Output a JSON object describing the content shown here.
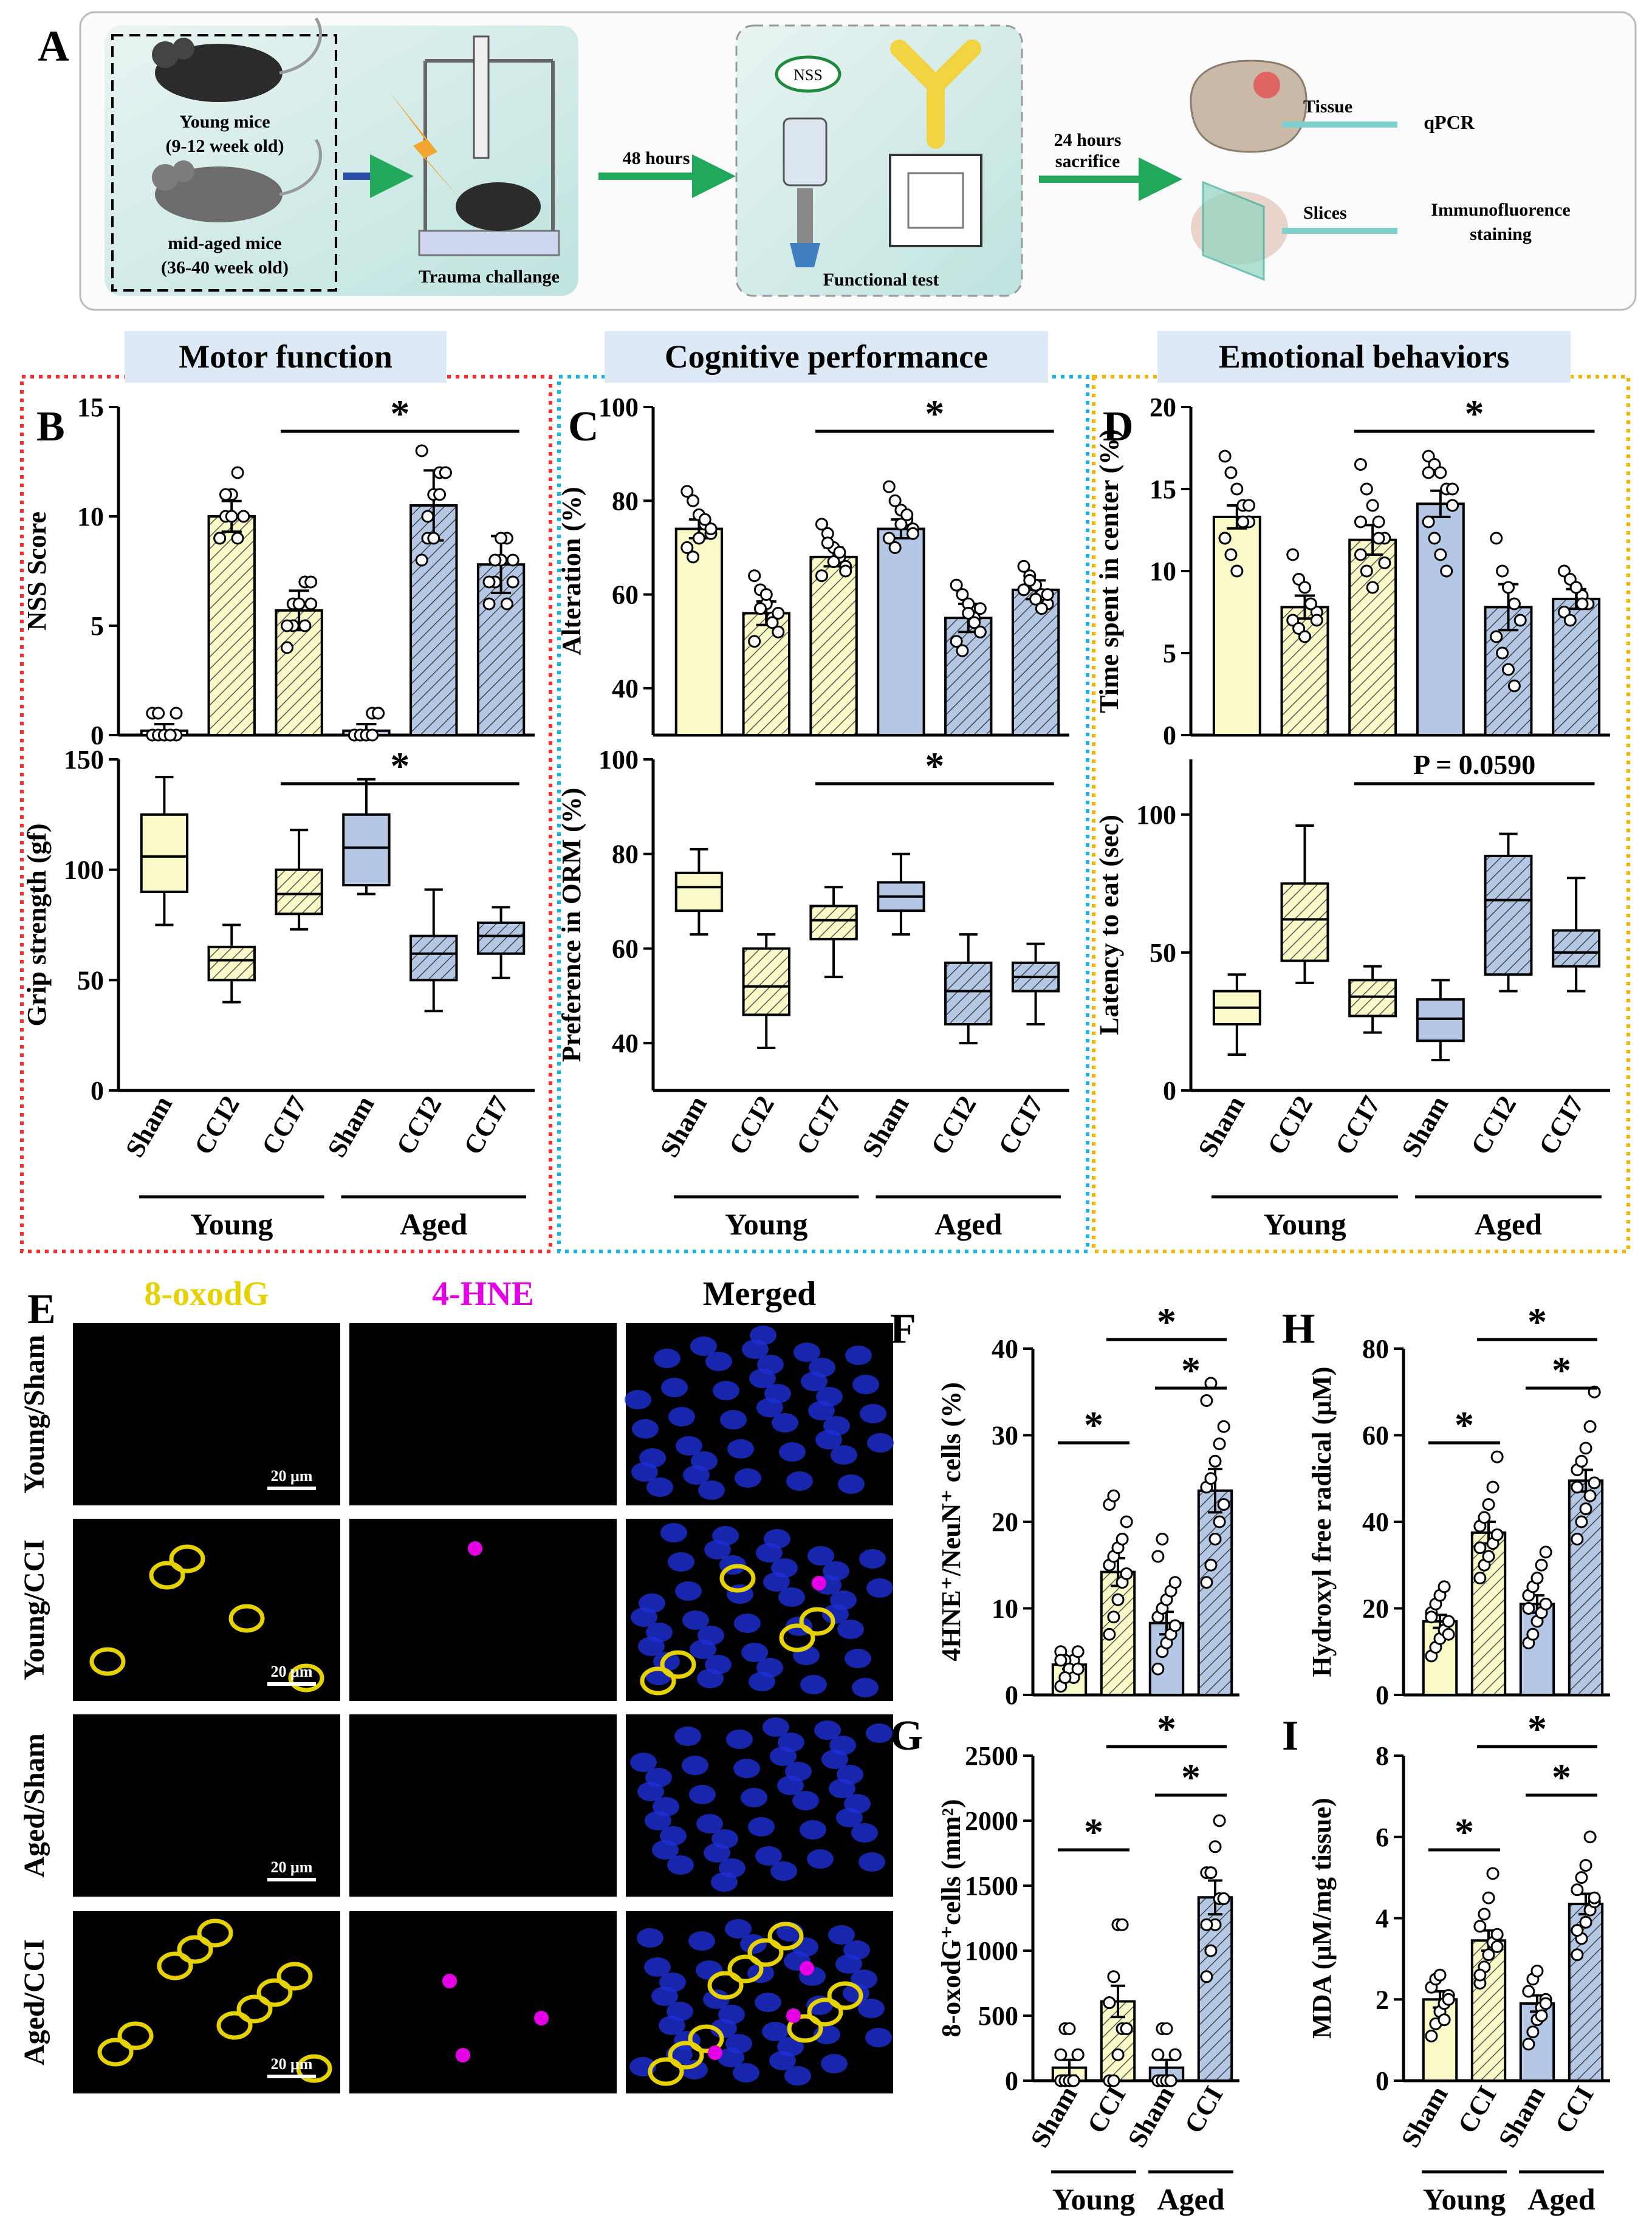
{
  "panel_labels": {
    "A": "A",
    "B": "B",
    "C": "C",
    "D": "D",
    "E": "E",
    "F": "F",
    "G": "G",
    "H": "H",
    "I": "I"
  },
  "schematic": {
    "young_mice": "Young mice",
    "young_age": "(9-12 week old)",
    "aged_mice": "mid-aged mice",
    "aged_age": "(36-40 week old)",
    "trauma": "Trauma challange",
    "step1": "48 hours",
    "nss_badge": "NSS",
    "functional_test": "Functional test",
    "step2_line1": "24 hours",
    "step2_line2": "sacrifice",
    "tissue": "Tissue",
    "qpcr": "qPCR",
    "slices": "Slices",
    "immuno_line1": "Immunofluorence",
    "immuno_line2": "staining"
  },
  "sections": {
    "motor": "Motor function",
    "cognitive": "Cognitive performance",
    "emotional": "Emotional behaviors"
  },
  "groups6": [
    "Sham",
    "CCI2",
    "CCI7",
    "Sham",
    "CCI2",
    "CCI7"
  ],
  "groups4": [
    "Sham",
    "CCI",
    "Sham",
    "CCI"
  ],
  "cohorts": {
    "young": "Young",
    "aged": "Aged"
  },
  "sig": {
    "star": "*",
    "pval": "P = 0.0590"
  },
  "colors": {
    "young": "#fafac8",
    "aged": "#b4c8e6",
    "stroke": "#000000",
    "dot": "#ffffff"
  },
  "microscopy": {
    "col_headers": [
      "8-oxodG",
      "4-HNE",
      "Merged"
    ],
    "col_colors": [
      "#e6d200",
      "#e600e6",
      "#000000"
    ],
    "row_labels": [
      "Young/Sham",
      "Young/CCI",
      "Aged/Sham",
      "Aged/CCI"
    ],
    "scale_bar": "20 μm"
  },
  "chart_data": [
    {
      "id": "B1",
      "type": "bar",
      "ylabel": "NSS Score",
      "ylim": [
        0,
        15
      ],
      "ticks": [
        0,
        5,
        10,
        15
      ],
      "categories": [
        "Sham",
        "CCI2",
        "CCI7",
        "Sham",
        "CCI2",
        "CCI7"
      ],
      "values": [
        0.2,
        10,
        5.7,
        0.2,
        10.5,
        7.8
      ],
      "errors": [
        0.3,
        0.7,
        0.9,
        0.3,
        1.6,
        1.3
      ],
      "points": [
        [
          0,
          0,
          0,
          0,
          0,
          1,
          1,
          0,
          0,
          1
        ],
        [
          9,
          10,
          11,
          12,
          10,
          9,
          11,
          10,
          9,
          10
        ],
        [
          4,
          5,
          6,
          7,
          6,
          5,
          6,
          6,
          5,
          7
        ],
        [
          0,
          0,
          0,
          1,
          1,
          0,
          0,
          0,
          0,
          1
        ],
        [
          8,
          9,
          11,
          12,
          12,
          13,
          10,
          9,
          11,
          12
        ],
        [
          6,
          7,
          8,
          9,
          8,
          7,
          8,
          9,
          6,
          7
        ]
      ],
      "sig": {
        "from": 2,
        "to": 5,
        "label": "*"
      }
    },
    {
      "id": "B2",
      "type": "box",
      "ylabel": "Grip strength (gf)",
      "ylim": [
        0,
        150
      ],
      "ticks": [
        0,
        50,
        100,
        150
      ],
      "categories": [
        "Sham",
        "CCI2",
        "CCI7",
        "Sham",
        "CCI2",
        "CCI7"
      ],
      "boxes": [
        [
          75,
          90,
          106,
          125,
          142
        ],
        [
          40,
          50,
          59,
          65,
          75
        ],
        [
          73,
          80,
          89,
          100,
          118
        ],
        [
          89,
          93,
          110,
          125,
          141
        ],
        [
          36,
          50,
          62,
          70,
          91
        ],
        [
          51,
          62,
          70,
          76,
          83
        ]
      ],
      "sig": {
        "from": 2,
        "to": 5,
        "label": "*"
      }
    },
    {
      "id": "C1",
      "type": "bar",
      "ylabel": "Alteration (%)",
      "ylim": [
        30,
        100
      ],
      "ticks": [
        40,
        60,
        80,
        100
      ],
      "categories": [
        "Sham",
        "CCI2",
        "CCI7",
        "Sham",
        "CCI2",
        "CCI7"
      ],
      "values": [
        74,
        56,
        68,
        74,
        55,
        61
      ],
      "errors": [
        2,
        2.5,
        2,
        2,
        3,
        2
      ],
      "points": [
        [
          82,
          80,
          77,
          75,
          73,
          70,
          68,
          72,
          76,
          74
        ],
        [
          64,
          61,
          58,
          55,
          52,
          50,
          57,
          60,
          54,
          56
        ],
        [
          75,
          73,
          70,
          68,
          66,
          64,
          71,
          67,
          69,
          65
        ],
        [
          83,
          80,
          78,
          76,
          74,
          72,
          70,
          75,
          77,
          73
        ],
        [
          62,
          60,
          58,
          55,
          52,
          50,
          48,
          56,
          54,
          57
        ],
        [
          66,
          64,
          62,
          60,
          58,
          61,
          63,
          59,
          57,
          60
        ]
      ],
      "sig": {
        "from": 2,
        "to": 5,
        "label": "*"
      }
    },
    {
      "id": "C2",
      "type": "box",
      "ylabel": "Preference in ORM (%)",
      "ylim": [
        30,
        100
      ],
      "ticks": [
        40,
        60,
        80,
        100
      ],
      "categories": [
        "Sham",
        "CCI2",
        "CCI7",
        "Sham",
        "CCI2",
        "CCI7"
      ],
      "boxes": [
        [
          63,
          68,
          73,
          76,
          81
        ],
        [
          39,
          46,
          52,
          60,
          63
        ],
        [
          54,
          62,
          66,
          69,
          73
        ],
        [
          63,
          68,
          71,
          74,
          80
        ],
        [
          40,
          44,
          51,
          57,
          63
        ],
        [
          44,
          51,
          54,
          57,
          61
        ]
      ],
      "sig": {
        "from": 2,
        "to": 5,
        "label": "*"
      }
    },
    {
      "id": "D1",
      "type": "bar",
      "ylabel": "Time spent in center (%)",
      "ylim": [
        0,
        20
      ],
      "ticks": [
        0,
        5,
        10,
        15,
        20
      ],
      "categories": [
        "Sham",
        "CCI2",
        "CCI7",
        "Sham",
        "CCI2",
        "CCI7"
      ],
      "values": [
        13.3,
        7.8,
        11.9,
        14.1,
        7.8,
        8.3
      ],
      "errors": [
        0.7,
        0.7,
        0.9,
        0.8,
        1.4,
        0.6
      ],
      "points": [
        [
          17,
          16,
          15,
          14,
          13,
          12,
          11,
          10,
          13,
          14,
          12
        ],
        [
          11,
          9.5,
          9,
          8,
          7.5,
          7,
          6.5,
          6,
          8,
          7
        ],
        [
          16.5,
          15,
          14,
          13,
          12,
          11,
          10,
          9,
          12,
          10.5,
          13
        ],
        [
          17,
          16.5,
          16,
          15,
          14,
          13,
          12,
          11,
          10,
          15,
          16
        ],
        [
          12,
          10,
          9,
          8,
          7,
          6,
          5,
          4,
          3
        ],
        [
          10,
          9.5,
          9,
          8.5,
          8,
          7.5,
          7,
          9,
          8
        ]
      ],
      "sig": {
        "from": 2,
        "to": 5,
        "label": "*"
      }
    },
    {
      "id": "D2",
      "type": "box",
      "ylabel": "Latency to eat (sec)",
      "ylim": [
        0,
        120
      ],
      "ticks": [
        0,
        50,
        100
      ],
      "categories": [
        "Sham",
        "CCI2",
        "CCI7",
        "Sham",
        "CCI2",
        "CCI7"
      ],
      "boxes": [
        [
          13,
          24,
          30,
          36,
          42
        ],
        [
          39,
          47,
          62,
          75,
          96
        ],
        [
          21,
          27,
          34,
          40,
          45
        ],
        [
          11,
          18,
          26,
          33,
          40
        ],
        [
          36,
          42,
          69,
          85,
          93
        ],
        [
          36,
          45,
          50,
          58,
          77
        ]
      ],
      "sig": {
        "from": 2,
        "to": 5,
        "label": "P = 0.0590"
      }
    },
    {
      "id": "F",
      "type": "bar",
      "ylabel": "4HNE⁺/NeuN⁺ cells (%)",
      "ylim": [
        0,
        40
      ],
      "ticks": [
        0,
        10,
        20,
        30,
        40
      ],
      "categories": [
        "Sham",
        "CCI",
        "Sham",
        "CCI"
      ],
      "values": [
        3.5,
        14.2,
        8.3,
        23.6
      ],
      "errors": [
        0.5,
        1.6,
        1.3,
        2.5
      ],
      "points": [
        [
          1,
          2,
          3,
          4,
          5,
          5,
          4,
          3,
          2,
          3,
          4,
          2
        ],
        [
          7,
          9,
          11,
          13,
          14,
          15,
          16,
          17,
          18,
          20,
          22,
          23
        ],
        [
          3,
          5,
          6,
          7,
          8,
          9,
          10,
          11,
          12,
          13,
          16,
          18
        ],
        [
          13,
          15,
          18,
          20,
          22,
          24,
          25,
          27,
          29,
          31,
          34,
          36
        ]
      ],
      "sigs": [
        {
          "from": 0,
          "to": 1,
          "level": 0,
          "label": "*"
        },
        {
          "from": 2,
          "to": 3,
          "level": 1,
          "label": "*"
        },
        {
          "from": 1,
          "to": 3,
          "level": 2,
          "label": "*"
        }
      ]
    },
    {
      "id": "G",
      "type": "bar",
      "ylabel": "8-oxodG⁺cells (mm²)",
      "ylim": [
        0,
        2500
      ],
      "ticks": [
        0,
        500,
        1000,
        1500,
        2000,
        2500
      ],
      "categories": [
        "Sham",
        "CCI",
        "Sham",
        "CCI"
      ],
      "values": [
        100,
        610,
        100,
        1410
      ],
      "errors": [
        60,
        120,
        60,
        130
      ],
      "points": [
        [
          0,
          0,
          0,
          0,
          200,
          200,
          400,
          400,
          0,
          200
        ],
        [
          0,
          0,
          200,
          400,
          400,
          600,
          800,
          1200,
          1200,
          400,
          600
        ],
        [
          0,
          0,
          0,
          0,
          200,
          200,
          400,
          400,
          0,
          200
        ],
        [
          800,
          1000,
          1200,
          1400,
          1400,
          1600,
          1600,
          1800,
          2000,
          1400,
          1200
        ]
      ],
      "sigs": [
        {
          "from": 0,
          "to": 1,
          "level": 0,
          "label": "*"
        },
        {
          "from": 2,
          "to": 3,
          "level": 1,
          "label": "*"
        },
        {
          "from": 1,
          "to": 3,
          "level": 2,
          "label": "*"
        }
      ]
    },
    {
      "id": "H",
      "type": "bar",
      "ylabel": "Hydroxyl free radical (μM)",
      "ylim": [
        0,
        80
      ],
      "ticks": [
        0,
        20,
        40,
        60,
        80
      ],
      "categories": [
        "Sham",
        "CCI",
        "Sham",
        "CCI"
      ],
      "values": [
        17,
        37.5,
        21,
        49.5
      ],
      "errors": [
        1.5,
        2.5,
        2,
        2.5
      ],
      "points": [
        [
          9,
          11,
          13,
          15,
          17,
          19,
          21,
          23,
          25,
          14,
          18
        ],
        [
          27,
          30,
          32,
          35,
          37,
          39,
          41,
          44,
          48,
          55,
          34
        ],
        [
          12,
          14,
          17,
          19,
          21,
          23,
          25,
          27,
          30,
          33,
          20
        ],
        [
          36,
          40,
          43,
          46,
          49,
          52,
          54,
          57,
          62,
          70,
          48
        ]
      ],
      "sigs": [
        {
          "from": 0,
          "to": 1,
          "level": 0,
          "label": "*"
        },
        {
          "from": 2,
          "to": 3,
          "level": 1,
          "label": "*"
        },
        {
          "from": 1,
          "to": 3,
          "level": 2,
          "label": "*"
        }
      ]
    },
    {
      "id": "I",
      "type": "bar",
      "ylabel": "MDA (μM/mg tissue)",
      "ylim": [
        0,
        8
      ],
      "ticks": [
        0,
        2,
        4,
        6,
        8
      ],
      "categories": [
        "Sham",
        "CCI",
        "Sham",
        "CCI"
      ],
      "values": [
        2,
        3.45,
        1.9,
        4.35
      ],
      "errors": [
        0.2,
        0.25,
        0.2,
        0.25
      ],
      "points": [
        [
          1.1,
          1.4,
          1.7,
          1.9,
          2.1,
          2.3,
          2.5,
          2.6,
          1.5,
          2
        ],
        [
          2.4,
          2.8,
          3.1,
          3.4,
          3.6,
          3.8,
          4.1,
          4.5,
          5.1,
          3.3,
          2.6
        ],
        [
          0.9,
          1.2,
          1.5,
          1.8,
          2,
          2.2,
          2.5,
          2.7,
          1.6,
          1.9
        ],
        [
          3.1,
          3.5,
          3.9,
          4.2,
          4.4,
          4.7,
          5,
          5.3,
          6,
          4.5,
          3.7
        ]
      ],
      "sigs": [
        {
          "from": 0,
          "to": 1,
          "level": 0,
          "label": "*"
        },
        {
          "from": 2,
          "to": 3,
          "level": 1,
          "label": "*"
        },
        {
          "from": 1,
          "to": 3,
          "level": 2,
          "label": "*"
        }
      ]
    }
  ]
}
